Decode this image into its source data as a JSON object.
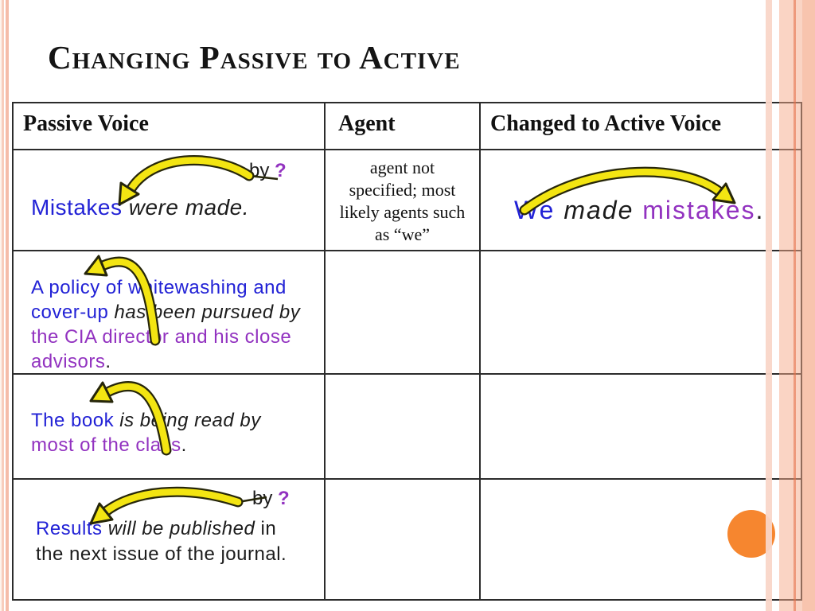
{
  "title": "Changing Passive to Active",
  "table": {
    "headers": [
      "Passive Voice",
      "Agent",
      "Changed to Active Voice"
    ],
    "rows": [
      {
        "passive": {
          "annotation": [
            [
              {
                "t": "by ",
                "c": "black"
              },
              {
                "t": "?",
                "c": "purple"
              }
            ]
          ],
          "lines": [
            [
              {
                "t": "Mistakes",
                "c": "blue"
              },
              {
                "t": " were made.",
                "c": "black",
                "i": true
              }
            ]
          ]
        },
        "agent": {
          "lines": [
            [
              {
                "t": "agent not"
              }
            ],
            [
              {
                "t": "specified; most"
              }
            ],
            [
              {
                "t": "likely agents such"
              }
            ],
            [
              {
                "t": "as “we”"
              }
            ]
          ]
        },
        "active": {
          "lines": [
            [
              {
                "t": "We",
                "c": "blue"
              },
              {
                "t": " made ",
                "c": "black",
                "i": true
              },
              {
                "t": "mistakes",
                "c": "purple"
              },
              {
                "t": ".",
                "c": "black"
              }
            ]
          ]
        }
      },
      {
        "passive": {
          "lines": [
            [
              {
                "t": "A policy of whitewashing and",
                "c": "blue"
              }
            ],
            [
              {
                "t": "cover-up ",
                "c": "blue"
              },
              {
                "t": "has been pursued by",
                "c": "black",
                "i": true
              }
            ],
            [
              {
                "t": "the CIA director and his close",
                "c": "purple"
              }
            ],
            [
              {
                "t": "advisors",
                "c": "purple"
              },
              {
                "t": ".",
                "c": "black"
              }
            ]
          ]
        },
        "agent": {
          "lines": []
        },
        "active": {
          "lines": []
        }
      },
      {
        "passive": {
          "lines": [
            [
              {
                "t": "The book",
                "c": "blue"
              },
              {
                "t": " is being read by",
                "c": "black",
                "i": true
              }
            ],
            [
              {
                "t": "most of the class",
                "c": "purple"
              },
              {
                "t": ".",
                "c": "black"
              }
            ]
          ]
        },
        "agent": {
          "lines": []
        },
        "active": {
          "lines": []
        }
      },
      {
        "passive": {
          "annotation": [
            [
              {
                "t": "by ",
                "c": "black"
              },
              {
                "t": "?",
                "c": "purple"
              }
            ]
          ],
          "lines": [
            [
              {
                "t": "Results",
                "c": "blue"
              },
              {
                "t": " will be published",
                "c": "black",
                "i": true
              },
              {
                "t": " in",
                "c": "black"
              }
            ],
            [
              {
                "t": "the next issue of the journal.",
                "c": "black"
              }
            ]
          ]
        },
        "agent": {
          "lines": []
        },
        "active": {
          "lines": []
        }
      }
    ]
  },
  "decorations": {
    "yellow_arrow_icon": "curved-yellow-arrow",
    "arrow_fill_color": "#f3e512",
    "arrow_outline_color": "#26260a",
    "text_blue": "#2222d6",
    "text_purple": "#9232c0",
    "edge_stripe_pink": "#f5ab8c",
    "orange_circle_color": "#f6862f",
    "table_border_color": "#2b2b2b"
  }
}
